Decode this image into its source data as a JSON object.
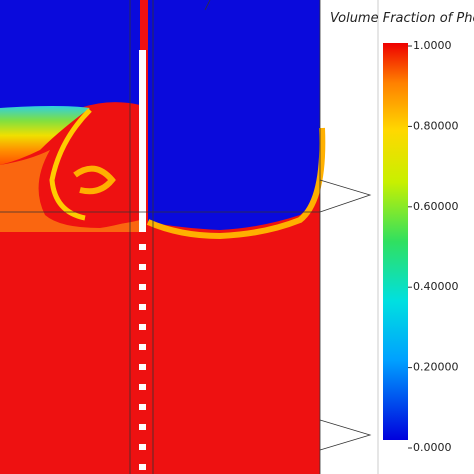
{
  "colorbar": {
    "title": "Volume Fraction of Phe",
    "ticks": [
      {
        "value": 1,
        "label": "1.0000"
      },
      {
        "value": 0.8,
        "label": "0.80000"
      },
      {
        "value": 0.6,
        "label": "0.60000"
      },
      {
        "value": 0.4,
        "label": "0.40000"
      },
      {
        "value": 0.2,
        "label": "0.20000"
      },
      {
        "value": 0,
        "label": "0.0000"
      }
    ]
  }
}
